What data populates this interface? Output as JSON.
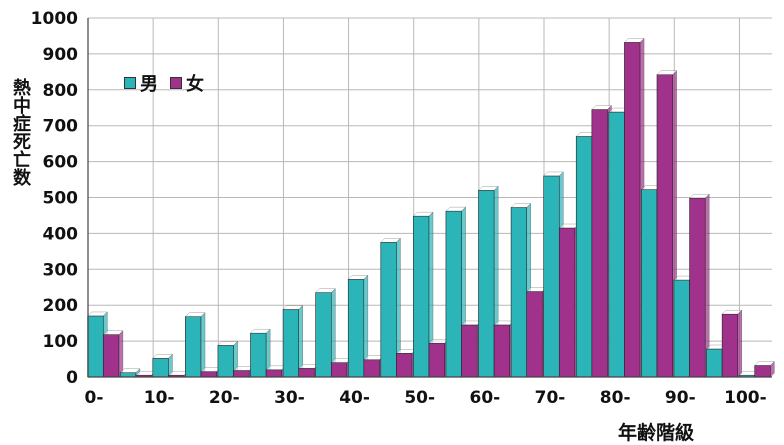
{
  "chart_data": {
    "type": "bar",
    "title": "",
    "ylabel": "熱中症死亡数",
    "xlabel": "年齢階級",
    "ylim": [
      0,
      1000
    ],
    "yticks": [
      0,
      100,
      200,
      300,
      400,
      500,
      600,
      700,
      800,
      900,
      1000
    ],
    "x_tick_labels": [
      "0-",
      "10-",
      "20-",
      "30-",
      "40-",
      "50-",
      "60-",
      "70-",
      "80-",
      "90-",
      "100-"
    ],
    "legend_position": "top-left",
    "grid": true,
    "colors": {
      "male": "#2bb5b8",
      "female": "#a0328b",
      "gridline": "#b8b8b8",
      "axis": "#444444"
    },
    "series": [
      {
        "name": "男",
        "values": [
          170,
          12,
          52,
          168,
          88,
          122,
          188,
          235,
          272,
          375,
          448,
          462,
          520,
          472,
          560,
          670,
          738,
          522,
          270,
          78,
          5
        ]
      },
      {
        "name": "女",
        "values": [
          118,
          5,
          5,
          15,
          18,
          20,
          24,
          40,
          48,
          66,
          94,
          145,
          145,
          238,
          415,
          745,
          932,
          842,
          498,
          175,
          32
        ]
      }
    ]
  }
}
